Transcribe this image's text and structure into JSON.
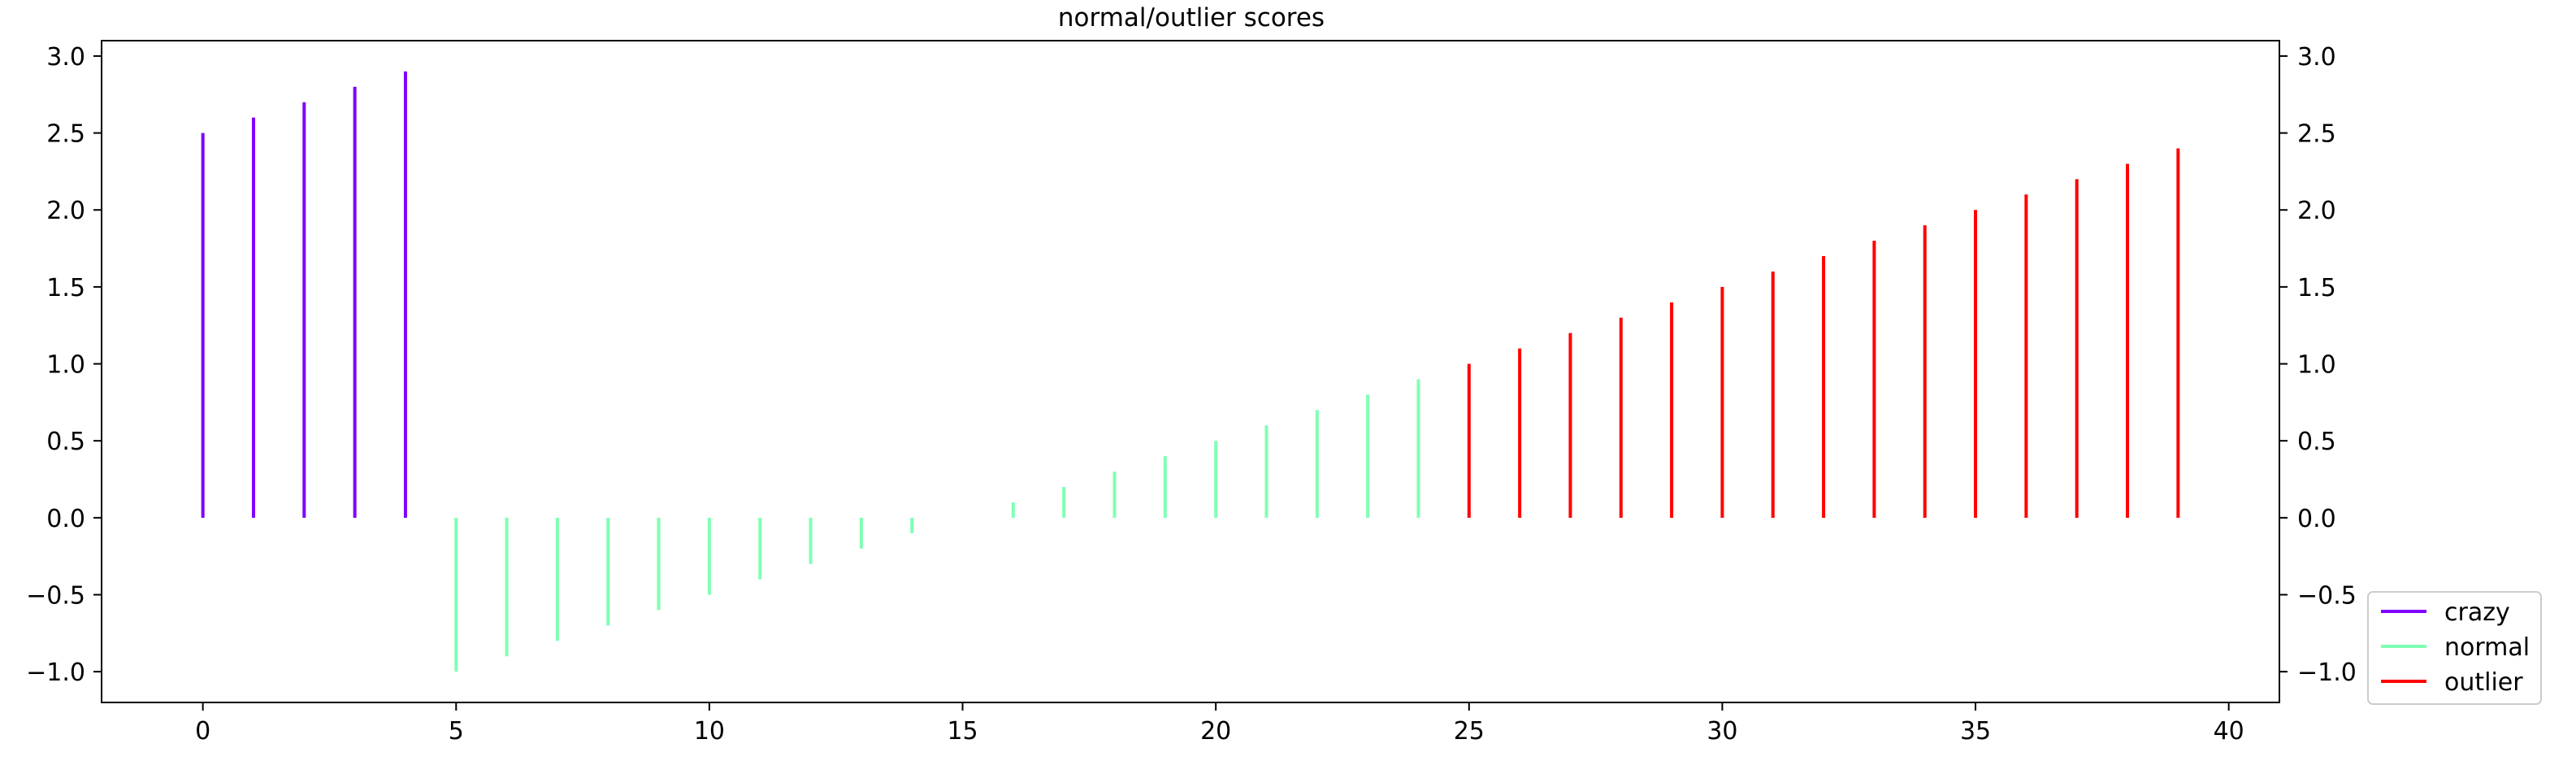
{
  "chart_data": {
    "type": "bar",
    "title": "normal/outlier scores",
    "xlabel": "",
    "ylabel": "",
    "xlim": [
      -2.0,
      41.0
    ],
    "ylim": [
      -1.2,
      3.1
    ],
    "xticks": [
      0,
      5,
      10,
      15,
      20,
      25,
      30,
      35,
      40
    ],
    "yticks": [
      -1.0,
      -0.5,
      0.0,
      0.5,
      1.0,
      1.5,
      2.0,
      2.5,
      3.0
    ],
    "ytick_labels": [
      "−1.0",
      "−0.5",
      "0.0",
      "0.5",
      "1.0",
      "1.5",
      "2.0",
      "2.5",
      "3.0"
    ],
    "right_ytick_labels": [
      "−1.0",
      "−0.5",
      "0.0",
      "0.5",
      "1.0",
      "1.5",
      "2.0",
      "2.5",
      "3.0"
    ],
    "grid": false,
    "legend_position": "bottom-right, outside plot",
    "series": [
      {
        "name": "crazy",
        "color": "#8000ff",
        "x": [
          0,
          1,
          2,
          3,
          4
        ],
        "values": [
          2.5,
          2.6,
          2.7,
          2.8,
          2.9
        ]
      },
      {
        "name": "normal",
        "color": "#80ffb4",
        "x": [
          5,
          6,
          7,
          8,
          9,
          10,
          11,
          12,
          13,
          14,
          15,
          16,
          17,
          18,
          19,
          20,
          21,
          22,
          23,
          24
        ],
        "values": [
          -1.0,
          -0.9,
          -0.8,
          -0.7,
          -0.6,
          -0.5,
          -0.4,
          -0.3,
          -0.2,
          -0.1,
          0.0,
          0.1,
          0.2,
          0.3,
          0.4,
          0.5,
          0.6,
          0.7,
          0.8,
          0.9
        ]
      },
      {
        "name": "outlier",
        "color": "#ff0000",
        "x": [
          25,
          26,
          27,
          28,
          29,
          30,
          31,
          32,
          33,
          34,
          35,
          36,
          37,
          38,
          39
        ],
        "values": [
          1.0,
          1.1,
          1.2,
          1.3,
          1.4,
          1.5,
          1.6,
          1.7,
          1.8,
          1.9,
          2.0,
          2.1,
          2.2,
          2.3,
          2.4
        ]
      }
    ]
  }
}
